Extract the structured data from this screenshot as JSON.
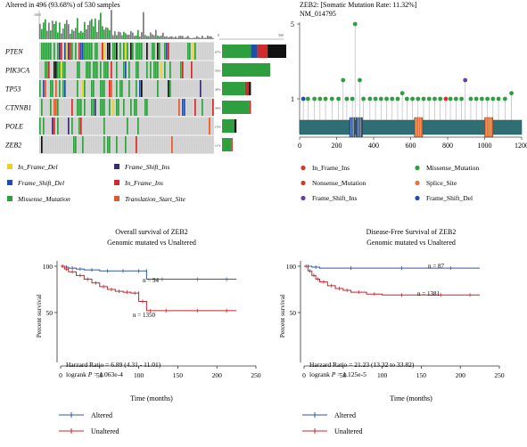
{
  "oncoprint": {
    "header": "Altered in 496 (93.68%) of 530 samples",
    "top_axis_max": "1000",
    "right_axis_ticks": [
      "0",
      "300"
    ],
    "genes": [
      "PTEN",
      "PIK3CA",
      "TP53",
      "CTNNB1",
      "POLE",
      "ZEB2"
    ],
    "percents": [
      "67%",
      "50%",
      "30%",
      "30%",
      "15%",
      "11%"
    ],
    "colors": {
      "missense": "#2e9e3f",
      "truncating": "#111111",
      "frameshift_del": "#1f4fa8",
      "inframe_ins": "#d02a2a",
      "inframe_del": "#e8d12a",
      "frameshift_ins": "#3b2a75",
      "translation_start": "#e0592a",
      "background": "#cfcfcf"
    },
    "bar_values": {
      "PTEN": {
        "missense": 0.45,
        "inframe_ins": 0.16,
        "frameshift_del": 0.1,
        "truncating": 0.29
      },
      "PIK3CA": {
        "missense": 1.0
      },
      "TP53": {
        "missense": 0.8,
        "inframe_ins": 0.12,
        "truncating": 0.08
      },
      "CTNNB1": {
        "missense": 0.95,
        "inframe_ins": 0.05
      },
      "POLE": {
        "missense": 0.85,
        "truncating": 0.15
      },
      "ZEB2": {
        "missense": 0.9,
        "inframe_ins": 0.1
      }
    },
    "legend": [
      {
        "label": "In_Frame_Del",
        "color": "#e8d12a"
      },
      {
        "label": "Frame_Shift_Ins",
        "color": "#3b2a75"
      },
      {
        "label": "Frame_Shift_Del",
        "color": "#1f4fa8"
      },
      {
        "label": "In_Frame_Ins",
        "color": "#d02a2a"
      },
      {
        "label": "Missense_Mutation",
        "color": "#2e9e3f"
      },
      {
        "label": "Translation_Start_Site",
        "color": "#e0592a"
      }
    ]
  },
  "lollipop": {
    "title": "ZEB2: [Somatic Mutation Rate: 11.32%]",
    "subtitle": "NM_014795",
    "y_ticks": [
      "5",
      "1"
    ],
    "x_ticks": [
      "0",
      "200",
      "400",
      "600",
      "800",
      "1000",
      "1200"
    ],
    "x_max": 1200,
    "colors": {
      "In_Frame_Ins": "#d23a2a",
      "Missense_Mutation": "#2e9e3f",
      "Nonsense_Mutation": "#d23a2a",
      "Splice_Site": "#e8703a",
      "Frame_Shift_Ins": "#6a3fa0",
      "Frame_Shift_Del": "#1f4fa8",
      "protein": "#2f6f73",
      "domain_blue": "#1f4fa8",
      "domain_orange": "#e8703a"
    },
    "mutations": [
      {
        "pos": 20,
        "count": 1,
        "type": "Frame_Shift_Del"
      },
      {
        "pos": 45,
        "count": 1,
        "type": "Missense_Mutation"
      },
      {
        "pos": 80,
        "count": 1,
        "type": "Missense_Mutation"
      },
      {
        "pos": 110,
        "count": 1,
        "type": "Missense_Mutation"
      },
      {
        "pos": 140,
        "count": 1,
        "type": "Missense_Mutation"
      },
      {
        "pos": 175,
        "count": 1,
        "type": "Missense_Mutation"
      },
      {
        "pos": 210,
        "count": 1,
        "type": "Missense_Mutation"
      },
      {
        "pos": 235,
        "count": 2,
        "type": "Missense_Mutation"
      },
      {
        "pos": 255,
        "count": 1,
        "type": "Missense_Mutation"
      },
      {
        "pos": 285,
        "count": 1,
        "type": "Missense_Mutation"
      },
      {
        "pos": 300,
        "count": 5,
        "type": "Missense_Mutation"
      },
      {
        "pos": 325,
        "count": 2,
        "type": "Missense_Mutation"
      },
      {
        "pos": 345,
        "count": 1,
        "type": "Missense_Mutation"
      },
      {
        "pos": 380,
        "count": 1,
        "type": "Missense_Mutation"
      },
      {
        "pos": 410,
        "count": 1,
        "type": "Missense_Mutation"
      },
      {
        "pos": 440,
        "count": 1,
        "type": "Missense_Mutation"
      },
      {
        "pos": 470,
        "count": 1,
        "type": "Missense_Mutation"
      },
      {
        "pos": 500,
        "count": 1,
        "type": "Missense_Mutation"
      },
      {
        "pos": 530,
        "count": 1,
        "type": "Missense_Mutation"
      },
      {
        "pos": 555,
        "count": 1.3,
        "type": "Missense_Mutation"
      },
      {
        "pos": 580,
        "count": 1,
        "type": "Missense_Mutation"
      },
      {
        "pos": 610,
        "count": 1,
        "type": "Missense_Mutation"
      },
      {
        "pos": 640,
        "count": 1,
        "type": "Missense_Mutation"
      },
      {
        "pos": 670,
        "count": 1,
        "type": "Missense_Mutation"
      },
      {
        "pos": 700,
        "count": 1,
        "type": "Missense_Mutation"
      },
      {
        "pos": 730,
        "count": 1,
        "type": "Missense_Mutation"
      },
      {
        "pos": 760,
        "count": 1,
        "type": "Missense_Mutation"
      },
      {
        "pos": 790,
        "count": 1,
        "type": "In_Frame_Ins"
      },
      {
        "pos": 815,
        "count": 1,
        "type": "Missense_Mutation"
      },
      {
        "pos": 845,
        "count": 1,
        "type": "Missense_Mutation"
      },
      {
        "pos": 875,
        "count": 1,
        "type": "Missense_Mutation"
      },
      {
        "pos": 895,
        "count": 2,
        "type": "Frame_Shift_Ins"
      },
      {
        "pos": 925,
        "count": 1,
        "type": "Missense_Mutation"
      },
      {
        "pos": 955,
        "count": 1,
        "type": "Missense_Mutation"
      },
      {
        "pos": 985,
        "count": 1,
        "type": "Missense_Mutation"
      },
      {
        "pos": 1015,
        "count": 1,
        "type": "Missense_Mutation"
      },
      {
        "pos": 1045,
        "count": 1,
        "type": "Missense_Mutation"
      },
      {
        "pos": 1075,
        "count": 1,
        "type": "Missense_Mutation"
      },
      {
        "pos": 1110,
        "count": 1,
        "type": "Missense_Mutation"
      },
      {
        "pos": 1145,
        "count": 1.3,
        "type": "Missense_Mutation"
      }
    ],
    "domains": [
      {
        "start": 270,
        "end": 300,
        "color": "#1f4fa8"
      },
      {
        "start": 305,
        "end": 340,
        "color": "#1f4fa8"
      },
      {
        "start": 620,
        "end": 665,
        "color": "#e8703a"
      },
      {
        "start": 1000,
        "end": 1045,
        "color": "#e8703a"
      }
    ],
    "legend": [
      {
        "label": "In_Frame_Ins",
        "color": "#d23a2a"
      },
      {
        "label": "Missense_Mutation",
        "color": "#2e9e3f"
      },
      {
        "label": "Nonsense_Mutation",
        "color": "#d23a2a"
      },
      {
        "label": "Splice_Site",
        "color": "#e8703a"
      },
      {
        "label": "Frame_Shift_Ins",
        "color": "#6a3fa0"
      },
      {
        "label": "Frame_Shift_Del",
        "color": "#1f4fa8"
      }
    ]
  },
  "chart_data": [
    {
      "type": "line",
      "title": "Overall survival of ZEB2",
      "subtitle": "Genomic mutated vs Unaltered",
      "xlabel": "Time (months)",
      "ylabel": "Percent survival",
      "xlim": [
        0,
        250
      ],
      "ylim": [
        0,
        100
      ],
      "x_ticks": [
        0,
        50,
        100,
        150,
        200,
        250
      ],
      "y_ticks": [
        50,
        100
      ],
      "series": [
        {
          "name": "Altered",
          "color": "#2b5aa3",
          "x": [
            0,
            5,
            10,
            20,
            30,
            50,
            70,
            90,
            110,
            110,
            150,
            200,
            225
          ],
          "y": [
            100,
            99,
            98,
            97,
            96,
            95,
            95,
            95,
            95,
            86,
            86,
            86,
            86
          ]
        },
        {
          "name": "Unaltered",
          "color": "#c0282d",
          "x": [
            0,
            5,
            10,
            20,
            30,
            40,
            50,
            60,
            70,
            80,
            90,
            100,
            100,
            110,
            120,
            150,
            200,
            225
          ],
          "y": [
            100,
            97,
            94,
            90,
            86,
            82,
            78,
            75,
            73,
            72,
            71,
            71,
            62,
            52,
            52,
            52,
            52,
            52
          ]
        }
      ],
      "annotations": {
        "n_altered": "n = 94",
        "n_unaltered": "n = 1350",
        "hr": "Harzard Ratio = 6.89 (4.31 - 11.01)",
        "logrank_label": "logrank ",
        "logrank_p": "P",
        "logrank_value": " = 1.063e-4"
      },
      "legend": [
        {
          "name": "Altered",
          "color": "#2b5aa3"
        },
        {
          "name": "Unaltered",
          "color": "#c0282d"
        }
      ]
    },
    {
      "type": "line",
      "title": "Disease-Free Survival of ZEB2",
      "subtitle": "Genomic mutated vs Unaltered",
      "xlabel": "Time (months)",
      "ylabel": "Percent survival",
      "xlim": [
        0,
        250
      ],
      "ylim": [
        0,
        100
      ],
      "x_ticks": [
        0,
        50,
        100,
        150,
        200,
        250
      ],
      "y_ticks": [
        50,
        100
      ],
      "series": [
        {
          "name": "Altered",
          "color": "#2b5aa3",
          "x": [
            0,
            10,
            20,
            100,
            150,
            225
          ],
          "y": [
            100,
            99,
            98,
            98,
            98,
            98
          ]
        },
        {
          "name": "Unaltered",
          "color": "#c0282d",
          "x": [
            0,
            5,
            10,
            15,
            20,
            30,
            40,
            50,
            60,
            80,
            100,
            150,
            200,
            225
          ],
          "y": [
            100,
            95,
            90,
            86,
            83,
            79,
            76,
            74,
            72,
            70,
            69,
            69,
            69,
            69
          ]
        }
      ],
      "annotations": {
        "n_altered": "n = 87",
        "n_unaltered": "n = 1381",
        "hr": "Harzard Ratio = 21.23 (13.32 to 33.82)",
        "logrank_label": "logrank ",
        "logrank_p": "P",
        "logrank_value": " = 1.125e-5"
      },
      "legend": [
        {
          "name": "Altered",
          "color": "#2b5aa3"
        },
        {
          "name": "Unaltered",
          "color": "#c0282d"
        }
      ]
    }
  ]
}
